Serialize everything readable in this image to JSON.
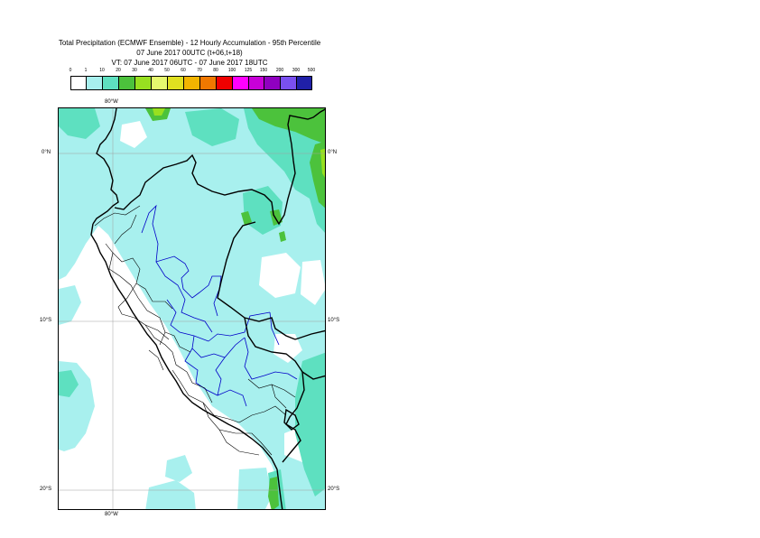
{
  "title": {
    "line1": "Total Precipitation (ECMWF Ensemble) - 12 Hourly Accumulation - 95th Percentile",
    "line2": "07 June 2017 00UTC (t+06,t+18)",
    "line3": "VT: 07 June 2017 06UTC - 07 June 2017 18UTC"
  },
  "legend": {
    "labels": [
      "0",
      "1",
      "10",
      "20",
      "30",
      "40",
      "50",
      "60",
      "70",
      "80",
      "100",
      "125",
      "150",
      "200",
      "300",
      "500"
    ],
    "colors": [
      "#ffffff",
      "#a8f0ee",
      "#5ee0c0",
      "#4cc23c",
      "#98e020",
      "#e6f86e",
      "#e0e020",
      "#f2b400",
      "#f07800",
      "#f00000",
      "#ff00ff",
      "#c800d8",
      "#9000c0",
      "#7a50f0",
      "#2020a8",
      "#101050"
    ]
  },
  "axes": {
    "lon_top": "80°W",
    "lon_bottom": "80°W",
    "lat_left": [
      "0°N",
      "10°S",
      "20°S"
    ],
    "lat_right": [
      "0°N",
      "10°S",
      "20°S"
    ]
  },
  "colors": {
    "light_cyan": "#a8f0ee",
    "medium_teal": "#5ee0c0",
    "green": "#4cc23c",
    "lime": "#98e020",
    "coast": "#000000",
    "admin": "#0000c8",
    "grid": "#a0a0a0"
  }
}
